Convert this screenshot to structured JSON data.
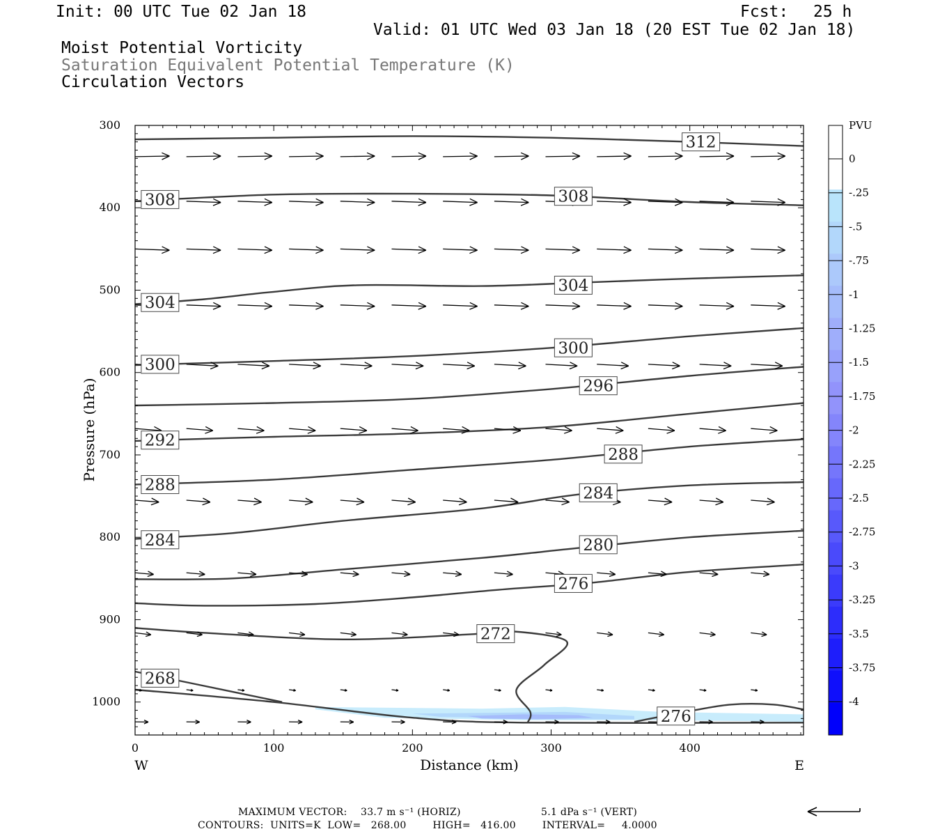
{
  "header": {
    "init": "Init: 00 UTC Tue 02 Jan 18",
    "fcst_label": "Fcst:",
    "fcst_value": "25 h",
    "valid": "Valid: 01 UTC Wed 03 Jan 18 (20 EST Tue 02 Jan 18)",
    "field_pv": "Moist Potential Vorticity",
    "field_theta": "Saturation Equivalent Potential Temperature (K)",
    "field_vectors": "Circulation Vectors"
  },
  "chart_data": {
    "type": "cross-section",
    "xlabel": "Distance (km)",
    "ylabel": "Pressure (hPa)",
    "x_ticks": [
      0,
      100,
      200,
      300,
      400
    ],
    "xlim": [
      0,
      482
    ],
    "y_ticks": [
      300,
      400,
      500,
      600,
      700,
      800,
      900,
      1000
    ],
    "ylim": [
      300,
      1040
    ],
    "y_scale": "linear, inverted",
    "endpoint_left": "W",
    "endpoint_right": "E",
    "colorbar": {
      "unit": "PVU",
      "labels": [
        "0",
        "-.25",
        "-.5",
        "-.75",
        "-1",
        "-1.25",
        "-1.5",
        "-1.75",
        "-2",
        "-2.25",
        "-2.5",
        "-2.75",
        "-3",
        "-3.25",
        "-3.5",
        "-3.75",
        "-4"
      ],
      "colors": [
        "#ffffff",
        "#ffffff",
        "#b9e4fb",
        "#b2d7fb",
        "#acc9fb",
        "#a5bcfb",
        "#9faefb",
        "#98a1fb",
        "#9293fb",
        "#8485fb",
        "#7576fb",
        "#6768fb",
        "#5859fb",
        "#4a4afb",
        "#3b3bfb",
        "#2d2dfb",
        "#1e1efb",
        "#0f0ffb",
        "#0000fb"
      ]
    },
    "contours": [
      {
        "label": "312",
        "points": [
          [
            0,
            317
          ],
          [
            100,
            315
          ],
          [
            200,
            313
          ],
          [
            300,
            315
          ],
          [
            400,
            320
          ],
          [
            482,
            325
          ]
        ],
        "labels_at": [
          [
            408,
            320
          ]
        ]
      },
      {
        "label": "308",
        "points": [
          [
            0,
            392
          ],
          [
            100,
            384
          ],
          [
            200,
            383
          ],
          [
            300,
            385
          ],
          [
            400,
            393
          ],
          [
            482,
            397
          ]
        ],
        "labels_at": [
          [
            18,
            390
          ],
          [
            316,
            386
          ]
        ]
      },
      {
        "label": "304",
        "points": [
          [
            0,
            517
          ],
          [
            50,
            511
          ],
          [
            100,
            502
          ],
          [
            160,
            494
          ],
          [
            250,
            495
          ],
          [
            320,
            491
          ],
          [
            400,
            486
          ],
          [
            482,
            482
          ]
        ],
        "labels_at": [
          [
            18,
            515
          ],
          [
            316,
            494
          ]
        ]
      },
      {
        "label": "300",
        "points": [
          [
            0,
            591
          ],
          [
            100,
            586
          ],
          [
            200,
            580
          ],
          [
            300,
            570
          ],
          [
            400,
            556
          ],
          [
            482,
            546
          ]
        ],
        "labels_at": [
          [
            18,
            590
          ],
          [
            316,
            570
          ]
        ]
      },
      {
        "label": "296",
        "points": [
          [
            0,
            640
          ],
          [
            100,
            637
          ],
          [
            200,
            632
          ],
          [
            300,
            620
          ],
          [
            400,
            604
          ],
          [
            482,
            593
          ]
        ],
        "labels_at": [
          [
            334,
            616
          ]
        ]
      },
      {
        "label": "292",
        "points": [
          [
            0,
            683
          ],
          [
            100,
            678
          ],
          [
            200,
            674
          ],
          [
            300,
            666
          ],
          [
            400,
            650
          ],
          [
            482,
            637
          ]
        ],
        "labels_at": [
          [
            18,
            682
          ]
        ]
      },
      {
        "label": "288",
        "points": [
          [
            0,
            736
          ],
          [
            100,
            730
          ],
          [
            200,
            718
          ],
          [
            300,
            706
          ],
          [
            400,
            690
          ],
          [
            482,
            681
          ]
        ],
        "labels_at": [
          [
            18,
            736
          ],
          [
            352,
            699
          ]
        ]
      },
      {
        "label": "284",
        "points": [
          [
            0,
            802
          ],
          [
            70,
            795
          ],
          [
            150,
            780
          ],
          [
            250,
            765
          ],
          [
            320,
            748
          ],
          [
            400,
            737
          ],
          [
            482,
            733
          ]
        ],
        "labels_at": [
          [
            18,
            803
          ],
          [
            334,
            746
          ]
        ]
      },
      {
        "label": "280",
        "points": [
          [
            0,
            851
          ],
          [
            70,
            850
          ],
          [
            150,
            839
          ],
          [
            250,
            825
          ],
          [
            320,
            813
          ],
          [
            400,
            800
          ],
          [
            482,
            792
          ]
        ],
        "labels_at": [
          [
            334,
            809
          ]
        ]
      },
      {
        "label": "276",
        "points": [
          [
            0,
            880
          ],
          [
            50,
            883
          ],
          [
            130,
            881
          ],
          [
            200,
            873
          ],
          [
            260,
            864
          ],
          [
            330,
            855
          ],
          [
            400,
            842
          ],
          [
            482,
            833
          ]
        ],
        "labels_at": [
          [
            316,
            856
          ]
        ]
      },
      {
        "label": "272",
        "points": [
          [
            0,
            910
          ],
          [
            50,
            916
          ],
          [
            150,
            924
          ],
          [
            240,
            918
          ],
          [
            270,
            914
          ],
          [
            311,
            926
          ],
          [
            295,
            955
          ],
          [
            275,
            985
          ],
          [
            285,
            1012
          ],
          [
            283,
            1025
          ]
        ],
        "labels_at": [
          [
            260,
            917
          ]
        ]
      },
      {
        "label": "268",
        "points": [
          [
            0,
            963
          ],
          [
            40,
            977
          ],
          [
            106,
            1000
          ]
        ],
        "labels_at": [
          [
            18,
            971
          ]
        ]
      },
      {
        "label": "",
        "points": [
          [
            0,
            985
          ],
          [
            100,
            1000
          ],
          [
            200,
            1019
          ],
          [
            280,
            1025
          ],
          [
            482,
            1025
          ]
        ],
        "labels_at": []
      },
      {
        "label": "276",
        "points": [
          [
            360,
            1024
          ],
          [
            400,
            1011
          ],
          [
            430,
            1003
          ],
          [
            460,
            1003
          ],
          [
            482,
            1009
          ]
        ],
        "labels_at": [
          [
            390,
            1017
          ]
        ]
      }
    ],
    "pv_shading": [
      {
        "level": "-0.25",
        "points": [
          [
            130,
            1006
          ],
          [
            250,
            1008
          ],
          [
            310,
            1006
          ],
          [
            380,
            1012
          ],
          [
            482,
            1015
          ],
          [
            482,
            1024
          ],
          [
            380,
            1022
          ],
          [
            280,
            1022
          ],
          [
            180,
            1019
          ],
          [
            130,
            1009
          ]
        ]
      },
      {
        "level": "-0.5",
        "points": [
          [
            200,
            1014
          ],
          [
            260,
            1013
          ],
          [
            310,
            1012
          ],
          [
            360,
            1017
          ],
          [
            360,
            1021
          ],
          [
            300,
            1021
          ],
          [
            220,
            1018
          ]
        ]
      },
      {
        "level": "-0.75",
        "points": [
          [
            240,
            1017
          ],
          [
            280,
            1015
          ],
          [
            320,
            1016
          ],
          [
            330,
            1019
          ],
          [
            290,
            1021
          ],
          [
            250,
            1020
          ]
        ]
      }
    ],
    "vectors": {
      "x": [
        0,
        37,
        74,
        111,
        148,
        185,
        222,
        259,
        296,
        333,
        370,
        407,
        444,
        481
      ],
      "rows": [
        {
          "p": 338,
          "u": 26,
          "w": -0.3
        },
        {
          "p": 392,
          "u": 26,
          "w": 0.6
        },
        {
          "p": 450,
          "u": 26,
          "w": 0.6
        },
        {
          "p": 518,
          "u": 26,
          "w": 0.6
        },
        {
          "p": 590,
          "u": 24,
          "w": 0.8
        },
        {
          "p": 668,
          "u": 20,
          "w": 1.0
        },
        {
          "p": 755,
          "u": 18,
          "w": 0.9
        },
        {
          "p": 843,
          "u": 14,
          "w": 0.8
        },
        {
          "p": 916,
          "u": 12,
          "w": 0.9
        },
        {
          "p": 985,
          "u": 5,
          "w": 0.4
        },
        {
          "p": 1024,
          "u": 10,
          "w": 0.1
        }
      ]
    },
    "footer": {
      "max_vector_label": "MAXIMUM VECTOR:",
      "max_horiz": "33.7 m s⁻¹ (HORIZ)",
      "max_vert": "5.1 dPa s⁻¹ (VERT)",
      "contours": "CONTOURS:  UNITS=K  LOW=   268.00        HIGH=   416.00        INTERVAL=     4.0000"
    }
  }
}
